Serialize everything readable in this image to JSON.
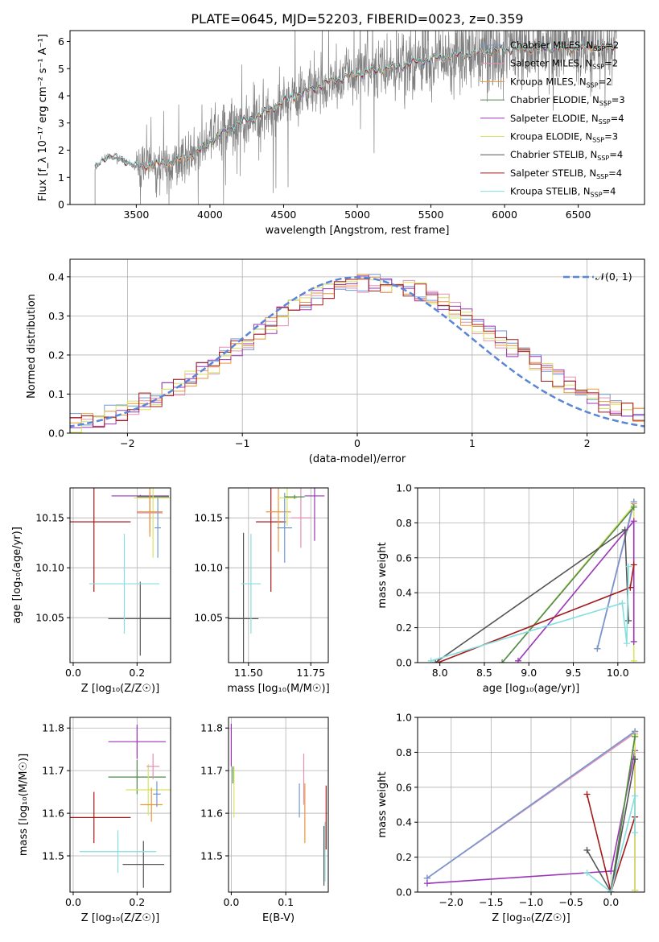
{
  "figure_title": "PLATE=0645, MJD=52203, FIBERID=0023, z=0.359",
  "colors": {
    "chabrier_miles": "#6f99d6",
    "salpeter_miles": "#e58fb4",
    "kroupa_miles": "#e8963a",
    "chabrier_elodie": "#4f8a4f",
    "salpeter_elodie": "#9b35b8",
    "kroupa_elodie": "#d8e35f",
    "chabrier_stelib": "#555555",
    "salpeter_stelib": "#a31a1a",
    "kroupa_stelib": "#86dede",
    "data": "#808080",
    "normal_curve": "#5b86d6",
    "grid": "#b0b0b0"
  },
  "chart_data": [
    {
      "id": "spectrum",
      "type": "line",
      "xlabel": "wavelength [Angstrom, rest frame]",
      "ylabel": "Flux [f_λ 10⁻¹⁷ erg cm⁻² s⁻¹ A⁻¹]",
      "xlim": [
        3050,
        6950
      ],
      "ylim": [
        0,
        6.4
      ],
      "xticks": [
        3500,
        4000,
        4500,
        5000,
        5500,
        6000,
        6500
      ],
      "yticks": [
        0,
        1,
        2,
        3,
        4,
        5,
        6
      ],
      "grid": false,
      "legend_position": "top-right",
      "series_names": [
        "Chabrier MILES, N_SSP=2",
        "Salpeter MILES, N_SSP=2",
        "Kroupa MILES, N_SSP=2",
        "Chabrier ELODIE, N_SSP=3",
        "Salpeter ELODIE, N_SSP=4",
        "Kroupa ELODIE, N_SSP=3",
        "Chabrier STELIB, N_SSP=4",
        "Salpeter STELIB, N_SSP=4",
        "Kroupa STELIB, N_SSP=4"
      ],
      "continuum": {
        "x": [
          3220,
          3260,
          3300,
          3400,
          3500,
          3600,
          3700,
          3800,
          3900,
          4000,
          4100,
          4200,
          4300,
          4400,
          4500,
          4600,
          4700,
          4800,
          4900,
          5000,
          5100,
          5200,
          5300,
          5400,
          5500,
          5600,
          5800,
          6000,
          6200,
          6400,
          6600,
          6750
        ],
        "y": [
          1.3,
          1.6,
          1.75,
          1.65,
          1.4,
          1.45,
          1.5,
          1.65,
          1.85,
          2.3,
          2.7,
          3.0,
          3.2,
          3.45,
          3.8,
          4.05,
          4.25,
          4.5,
          4.65,
          4.8,
          4.9,
          5.0,
          5.1,
          5.25,
          5.35,
          5.45,
          5.55,
          5.7,
          5.75,
          5.75,
          5.8,
          5.8
        ]
      }
    },
    {
      "id": "residuals",
      "type": "histogram",
      "xlabel": "(data-model)/error",
      "ylabel": "Normed distribution",
      "xlim": [
        -2.5,
        2.5
      ],
      "ylim": [
        0,
        0.445
      ],
      "xticks": [
        -2,
        -1,
        0,
        1,
        2
      ],
      "yticks": [
        0.0,
        0.1,
        0.2,
        0.3,
        0.4
      ],
      "grid": true,
      "legend": "𝒩(0, 1)",
      "legend_position": "top-right",
      "bin_width": 0.1,
      "normal": {
        "mu": 0,
        "sigma": 1
      }
    },
    {
      "id": "age_vs_Z",
      "type": "errorbar",
      "xlabel": "Z [log₁₀(Z/Z☉)]",
      "ylabel": "age [log₁₀(age/yr)]",
      "xlim": [
        -0.01,
        0.305
      ],
      "ylim": [
        10.005,
        10.18
      ],
      "xticks": [
        0.0,
        0.2
      ],
      "yticks": [
        10.05,
        10.1,
        10.15
      ],
      "grid": true,
      "points": [
        {
          "s": "salpeter_stelib",
          "x": 0.065,
          "xe": 0.115,
          "y": 10.146,
          "ye": 0.07
        },
        {
          "s": "chabrier_stelib",
          "x": 0.21,
          "xe": 0.1,
          "y": 10.049,
          "ye": 0.037
        },
        {
          "s": "kroupa_stelib",
          "x": 0.16,
          "xe": 0.11,
          "y": 10.084,
          "ye": 0.05
        },
        {
          "s": "salpeter_elodie",
          "x": 0.21,
          "xe": 0.09,
          "y": 10.172,
          "ye": 0.001
        },
        {
          "s": "chabrier_elodie",
          "x": 0.25,
          "xe": 0.05,
          "y": 10.171,
          "ye": 0.002
        },
        {
          "s": "kroupa_elodie",
          "x": 0.25,
          "xe": 0.06,
          "y": 10.17,
          "ye": 0.06
        },
        {
          "s": "salpeter_miles",
          "x": 0.24,
          "xe": 0.04,
          "y": 10.155,
          "ye": 0.02
        },
        {
          "s": "kroupa_miles",
          "x": 0.24,
          "xe": 0.04,
          "y": 10.156,
          "ye": 0.025
        },
        {
          "s": "chabrier_miles",
          "x": 0.265,
          "xe": 0.01,
          "y": 10.14,
          "ye": 0.03
        }
      ]
    },
    {
      "id": "age_vs_mass",
      "type": "errorbar",
      "xlabel": "mass [log₁₀(M/M☉)]",
      "ylabel": "",
      "xlim": [
        11.42,
        11.82
      ],
      "ylim": [
        10.005,
        10.18
      ],
      "xticks": [
        11.5,
        11.75
      ],
      "yticks": [
        10.05,
        10.1,
        10.15
      ],
      "grid": true,
      "points": [
        {
          "s": "chabrier_stelib",
          "x": 11.48,
          "xe": 0.06,
          "y": 10.049,
          "ye": 0.086
        },
        {
          "s": "kroupa_stelib",
          "x": 11.51,
          "xe": 0.04,
          "y": 10.084,
          "ye": 0.05
        },
        {
          "s": "salpeter_stelib",
          "x": 11.59,
          "xe": 0.06,
          "y": 10.146,
          "ye": 0.07
        },
        {
          "s": "kroupa_miles",
          "x": 11.62,
          "xe": 0.05,
          "y": 10.156,
          "ye": 0.04
        },
        {
          "s": "chabrier_miles",
          "x": 11.645,
          "xe": 0.03,
          "y": 10.14,
          "ye": 0.035
        },
        {
          "s": "salpeter_miles",
          "x": 11.71,
          "xe": 0.04,
          "y": 10.15,
          "ye": 0.03
        },
        {
          "s": "kroupa_elodie",
          "x": 11.655,
          "xe": 0.04,
          "y": 10.17,
          "ye": 0.028
        },
        {
          "s": "chabrier_elodie",
          "x": 11.685,
          "xe": 0.04,
          "y": 10.171,
          "ye": 0.002
        },
        {
          "s": "salpeter_elodie",
          "x": 11.765,
          "xe": 0.04,
          "y": 10.172,
          "ye": 0.045
        }
      ]
    },
    {
      "id": "weight_vs_age",
      "type": "line",
      "xlabel": "age [log₁₀(age/yr)]",
      "ylabel": "mass weight",
      "xlim": [
        7.75,
        10.3
      ],
      "ylim": [
        0,
        1.0
      ],
      "xticks": [
        8.0,
        8.5,
        9.0,
        9.5,
        10.0
      ],
      "yticks": [
        0.0,
        0.2,
        0.4,
        0.6,
        0.8,
        1.0
      ],
      "grid": true,
      "series": [
        {
          "s": "kroupa_miles",
          "x": [
            9.77,
            10.18
          ],
          "y": [
            0.08,
            0.92
          ]
        },
        {
          "s": "salpeter_miles",
          "x": [
            9.77,
            10.18
          ],
          "y": [
            0.08,
            0.91
          ]
        },
        {
          "s": "chabrier_miles",
          "x": [
            9.77,
            10.18
          ],
          "y": [
            0.08,
            0.92
          ]
        },
        {
          "s": "kroupa_elodie",
          "x": [
            8.7,
            10.18,
            10.18
          ],
          "y": [
            0.0,
            0.9,
            0.01
          ]
        },
        {
          "s": "salpeter_elodie",
          "x": [
            8.88,
            10.18,
            10.18
          ],
          "y": [
            0.01,
            0.81,
            0.12
          ]
        },
        {
          "s": "chabrier_elodie",
          "x": [
            8.7,
            10.18
          ],
          "y": [
            0.0,
            0.89
          ]
        },
        {
          "s": "chabrier_stelib",
          "x": [
            7.95,
            10.08,
            10.12
          ],
          "y": [
            0.0,
            0.76,
            0.24
          ]
        },
        {
          "s": "salpeter_stelib",
          "x": [
            7.98,
            10.14,
            10.18
          ],
          "y": [
            0.0,
            0.43,
            0.56
          ]
        },
        {
          "s": "kroupa_stelib",
          "x": [
            7.9,
            10.05,
            10.1,
            10.12
          ],
          "y": [
            0.01,
            0.34,
            0.11,
            0.55
          ]
        }
      ]
    },
    {
      "id": "mass_vs_Z",
      "type": "errorbar",
      "xlabel": "Z [log₁₀(Z/Z☉)]",
      "ylabel": "mass [log₁₀(M/M☉)]",
      "xlim": [
        -0.01,
        0.305
      ],
      "ylim": [
        11.415,
        11.825
      ],
      "xticks": [
        0.0,
        0.2
      ],
      "yticks": [
        11.5,
        11.6,
        11.7,
        11.8
      ],
      "grid": true,
      "points": [
        {
          "s": "salpeter_stelib",
          "x": 0.065,
          "xe": 0.115,
          "y": 11.59,
          "ye": 0.06
        },
        {
          "s": "chabrier_stelib",
          "x": 0.22,
          "xe": 0.065,
          "y": 11.48,
          "ye": 0.055
        },
        {
          "s": "kroupa_stelib",
          "x": 0.14,
          "xe": 0.12,
          "y": 11.51,
          "ye": 0.05
        },
        {
          "s": "salpeter_elodie",
          "x": 0.2,
          "xe": 0.09,
          "y": 11.768,
          "ye": 0.04
        },
        {
          "s": "chabrier_elodie",
          "x": 0.2,
          "xe": 0.09,
          "y": 11.685,
          "ye": 0.04
        },
        {
          "s": "kroupa_elodie",
          "x": 0.235,
          "xe": 0.07,
          "y": 11.655,
          "ye": 0.06
        },
        {
          "s": "salpeter_miles",
          "x": 0.25,
          "xe": 0.02,
          "y": 11.71,
          "ye": 0.03
        },
        {
          "s": "kroupa_miles",
          "x": 0.245,
          "xe": 0.035,
          "y": 11.62,
          "ye": 0.04
        },
        {
          "s": "chabrier_miles",
          "x": 0.262,
          "xe": 0.012,
          "y": 11.645,
          "ye": 0.03
        }
      ]
    },
    {
      "id": "mass_vs_EBV",
      "type": "errorbar",
      "xlabel": "E(B-V)",
      "ylabel": "",
      "xlim": [
        -0.005,
        0.178
      ],
      "ylim": [
        11.415,
        11.825
      ],
      "xticks": [
        0.0,
        0.1
      ],
      "yticks": [
        11.5,
        11.6,
        11.7,
        11.8
      ],
      "grid": true,
      "points": [
        {
          "s": "salpeter_elodie",
          "x": 0.0,
          "xe": 0,
          "y": 11.76,
          "ye": 0.05
        },
        {
          "s": "chabrier_elodie",
          "x": 0.003,
          "xe": 0,
          "y": 11.69,
          "ye": 0.02
        },
        {
          "s": "kroupa_elodie",
          "x": 0.005,
          "xe": 0,
          "y": 11.65,
          "ye": 0.06
        },
        {
          "s": "chabrier_miles",
          "x": 0.125,
          "xe": 0,
          "y": 11.63,
          "ye": 0.04
        },
        {
          "s": "salpeter_miles",
          "x": 0.133,
          "xe": 0,
          "y": 11.68,
          "ye": 0.06
        },
        {
          "s": "kroupa_miles",
          "x": 0.135,
          "xe": 0,
          "y": 11.6,
          "ye": 0.07
        },
        {
          "s": "chabrier_stelib",
          "x": 0.17,
          "xe": 0,
          "y": 11.5,
          "ye": 0.07
        },
        {
          "s": "kroupa_stelib",
          "x": 0.172,
          "xe": 0,
          "y": 11.51,
          "ye": 0.07
        },
        {
          "s": "salpeter_stelib",
          "x": 0.174,
          "xe": 0,
          "y": 11.59,
          "ye": 0.075
        }
      ]
    },
    {
      "id": "weight_vs_Z",
      "type": "line",
      "xlabel": "Z [log₁₀(Z/Z☉)]",
      "ylabel": "mass weight",
      "xlim": [
        -2.42,
        0.42
      ],
      "ylim": [
        0,
        1.0
      ],
      "xticks": [
        -2.0,
        -1.5,
        -1.0,
        -0.5,
        0.0
      ],
      "yticks": [
        0.0,
        0.2,
        0.4,
        0.6,
        0.8,
        1.0
      ],
      "grid": true,
      "series": [
        {
          "s": "kroupa_miles",
          "x": [
            -2.3,
            0.3
          ],
          "y": [
            0.08,
            0.92
          ]
        },
        {
          "s": "salpeter_miles",
          "x": [
            -2.3,
            0.3
          ],
          "y": [
            0.08,
            0.91
          ]
        },
        {
          "s": "chabrier_miles",
          "x": [
            -2.3,
            0.3
          ],
          "y": [
            0.08,
            0.92
          ]
        },
        {
          "s": "salpeter_elodie",
          "x": [
            -2.3,
            0.0,
            0.3,
            0.3
          ],
          "y": [
            0.05,
            0.12,
            0.81,
            0.01
          ]
        },
        {
          "s": "kroupa_elodie",
          "x": [
            0.0,
            0.3,
            0.3
          ],
          "y": [
            0.0,
            0.9,
            0.01
          ]
        },
        {
          "s": "chabrier_elodie",
          "x": [
            0.0,
            0.3
          ],
          "y": [
            0.0,
            0.89
          ]
        },
        {
          "s": "chabrier_stelib",
          "x": [
            -0.3,
            0.0,
            0.3
          ],
          "y": [
            0.24,
            0.0,
            0.76
          ]
        },
        {
          "s": "salpeter_stelib",
          "x": [
            -0.3,
            0.0,
            0.3
          ],
          "y": [
            0.56,
            0.0,
            0.43
          ]
        },
        {
          "s": "kroupa_stelib",
          "x": [
            -0.3,
            0.0,
            0.3,
            0.3
          ],
          "y": [
            0.11,
            0.0,
            0.55,
            0.34
          ]
        }
      ]
    }
  ]
}
